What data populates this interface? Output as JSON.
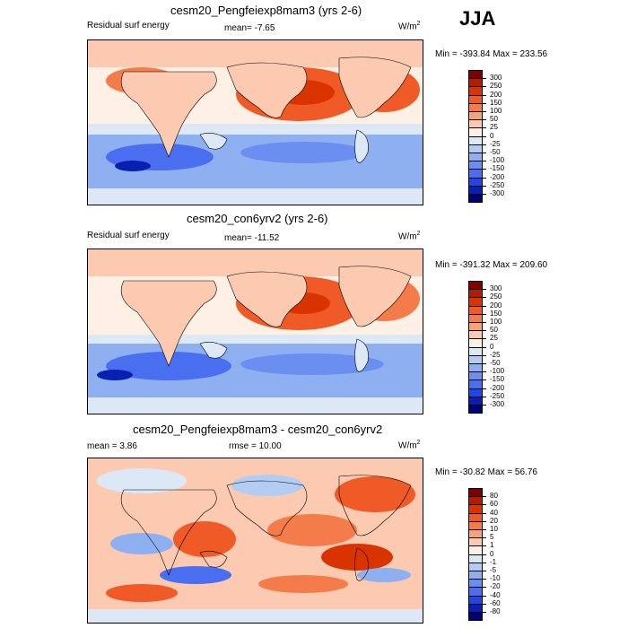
{
  "season": "JJA",
  "units_base": "W/m",
  "units_sup": "2",
  "panels": [
    {
      "title": "cesm20_Pengfeiexp8mam3 (yrs 2-6)",
      "left_label": "Residual surf energy",
      "center_label": "mean=  -7.65",
      "minmax": "Min = -393.84 Max = 233.56",
      "colorbar": [
        "300",
        "250",
        "200",
        "150",
        "100",
        "50",
        "25",
        "0",
        "-25",
        "-50",
        "-100",
        "-150",
        "-200",
        "-250",
        "-300"
      ]
    },
    {
      "title": "cesm20_con6yrv2 (yrs 2-6)",
      "left_label": "Residual surf energy",
      "center_label": "mean= -11.52",
      "minmax": "Min = -391.32 Max = 209.60",
      "colorbar": [
        "300",
        "250",
        "200",
        "150",
        "100",
        "50",
        "25",
        "0",
        "-25",
        "-50",
        "-100",
        "-150",
        "-200",
        "-250",
        "-300"
      ]
    },
    {
      "title": "cesm20_Pengfeiexp8mam3 - cesm20_con6yrv2",
      "left_label": "mean =   3.86",
      "center_label": "rmse =  10.00",
      "minmax": "Min = -30.82 Max =  56.76",
      "colorbar": [
        "80",
        "60",
        "40",
        "20",
        "10",
        "5",
        "1",
        "0",
        "-1",
        "-5",
        "-10",
        "-20",
        "-40",
        "-60",
        "-80"
      ]
    }
  ],
  "colors": {
    "cbar": [
      "#7f0000",
      "#b21d00",
      "#d93400",
      "#ef5a26",
      "#f47c4a",
      "#f7a277",
      "#fccab0",
      "#fff0e6",
      "#dce8f5",
      "#b3cdf2",
      "#8fb0f0",
      "#6b8ff0",
      "#4a6ef0",
      "#2046e6",
      "#0820b0",
      "#000078"
    ]
  },
  "chart_data": [
    {
      "type": "heatmap",
      "title": "cesm20_Pengfeiexp8mam3 (yrs 2-6)",
      "variable": "Residual surf energy",
      "season": "JJA",
      "units": "W/m2",
      "mean": -7.65,
      "min": -393.84,
      "max": 233.56,
      "contour_levels": [
        -300,
        -250,
        -200,
        -150,
        -100,
        -50,
        -25,
        0,
        25,
        50,
        100,
        150,
        200,
        250,
        300
      ]
    },
    {
      "type": "heatmap",
      "title": "cesm20_con6yrv2 (yrs 2-6)",
      "variable": "Residual surf energy",
      "season": "JJA",
      "units": "W/m2",
      "mean": -11.52,
      "min": -391.32,
      "max": 209.6,
      "contour_levels": [
        -300,
        -250,
        -200,
        -150,
        -100,
        -50,
        -25,
        0,
        25,
        50,
        100,
        150,
        200,
        250,
        300
      ]
    },
    {
      "type": "heatmap",
      "title": "cesm20_Pengfeiexp8mam3 - cesm20_con6yrv2",
      "season": "JJA",
      "units": "W/m2",
      "mean": 3.86,
      "rmse": 10.0,
      "min": -30.82,
      "max": 56.76,
      "contour_levels": [
        -80,
        -60,
        -40,
        -20,
        -10,
        -5,
        -1,
        0,
        1,
        5,
        10,
        20,
        40,
        60,
        80
      ]
    }
  ]
}
